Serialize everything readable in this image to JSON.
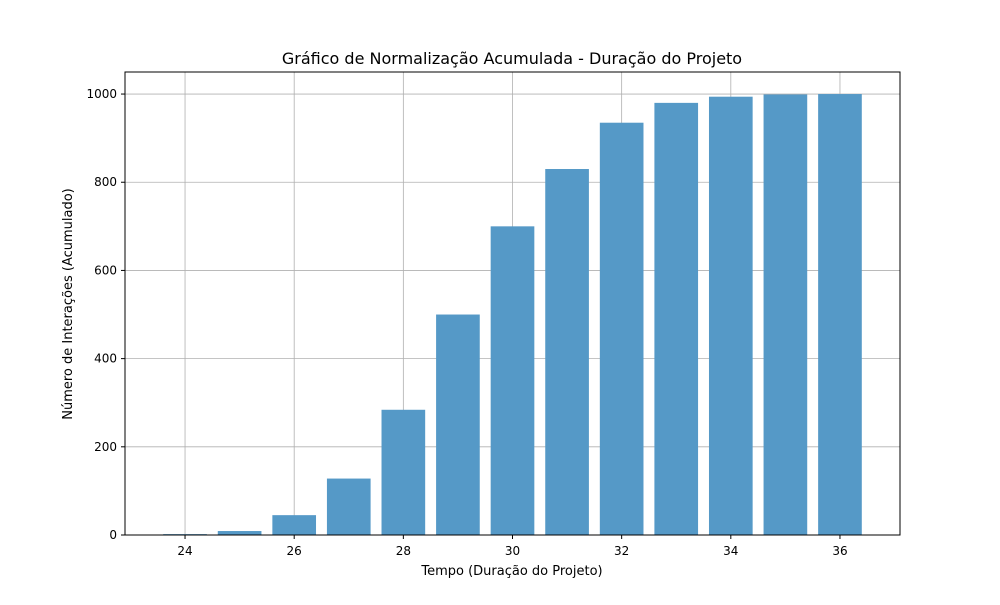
{
  "chart_data": {
    "type": "bar",
    "title": "Gráfico de Normalização Acumulada - Duração do Projeto",
    "xlabel": "Tempo (Duração do Projeto)",
    "ylabel": "Número de Interações (Acumulado)",
    "x": [
      24,
      25,
      26,
      27,
      28,
      29,
      30,
      31,
      32,
      33,
      34,
      35,
      36
    ],
    "values": [
      2,
      9,
      45,
      128,
      284,
      500,
      700,
      830,
      935,
      980,
      994,
      999,
      1000
    ],
    "xlim": [
      22.9,
      37.1
    ],
    "ylim": [
      0,
      1050
    ],
    "xticks": [
      24,
      26,
      28,
      30,
      32,
      34,
      36
    ],
    "yticks": [
      0,
      200,
      400,
      600,
      800,
      1000
    ],
    "bar_color": "#5599c7",
    "grid": true,
    "legend": "none"
  }
}
